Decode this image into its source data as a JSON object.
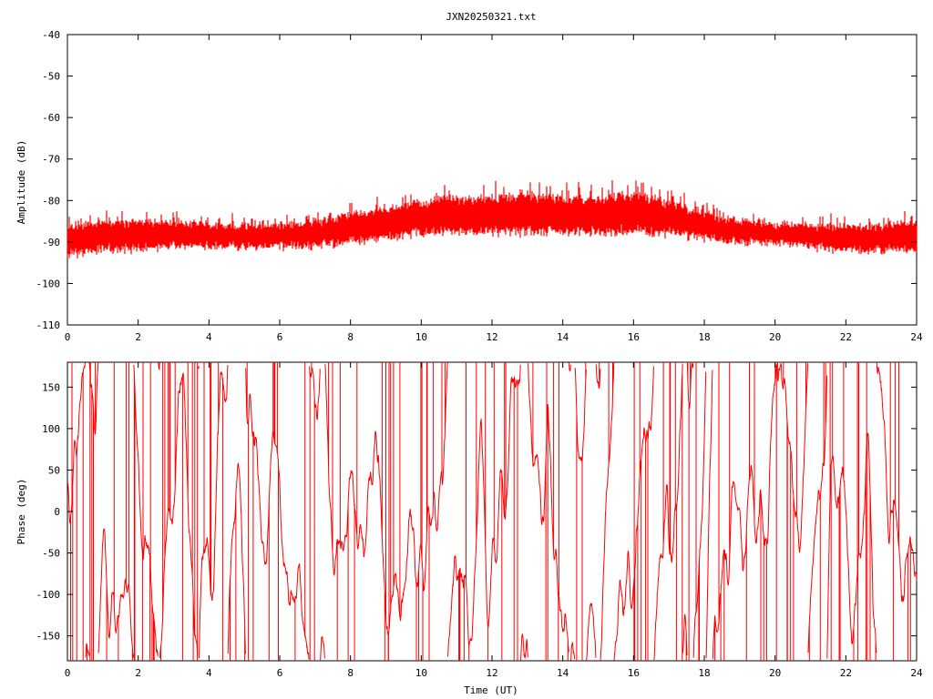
{
  "title": "JXN20250321.txt",
  "xlabel": "Time (UT)",
  "colors": {
    "series": "#ff0000",
    "axes": "#000000",
    "background": "#ffffff"
  },
  "chart_data": [
    {
      "type": "line",
      "panel": "amplitude",
      "title": "JXN20250321.txt",
      "xlabel": "",
      "ylabel": "Amplitude (dB)",
      "xlim": [
        0,
        24
      ],
      "ylim": [
        -110,
        -40
      ],
      "xticks": [
        "0",
        "2",
        "4",
        "6",
        "8",
        "10",
        "12",
        "14",
        "16",
        "18",
        "20",
        "22",
        "24"
      ],
      "yticks": [
        "-40",
        "-50",
        "-60",
        "-70",
        "-80",
        "-90",
        "-100",
        "-110"
      ],
      "grid": false,
      "envelope": {
        "x": [
          0,
          1,
          2,
          3,
          4,
          5,
          6,
          7,
          8,
          9,
          10,
          11,
          12,
          13,
          14,
          15,
          16,
          17,
          18,
          19,
          20,
          21,
          22,
          23,
          24
        ],
        "y_low": [
          -94,
          -93,
          -93,
          -92,
          -92,
          -92,
          -92,
          -92,
          -91,
          -90,
          -89,
          -89,
          -89,
          -89,
          -89,
          -89,
          -89,
          -89,
          -90,
          -91,
          -91,
          -92,
          -93,
          -93,
          -93
        ],
        "y_high": [
          -85,
          -84,
          -84,
          -84,
          -85,
          -85,
          -85,
          -84,
          -82,
          -81,
          -79,
          -78,
          -78,
          -77,
          -78,
          -78,
          -77,
          -79,
          -82,
          -84,
          -85,
          -85,
          -85,
          -85,
          -84
        ]
      }
    },
    {
      "type": "line",
      "panel": "phase",
      "xlabel": "Time (UT)",
      "ylabel": "Phase (deg)",
      "xlim": [
        0,
        24
      ],
      "ylim": [
        -180,
        180
      ],
      "xticks": [
        "0",
        "2",
        "4",
        "6",
        "8",
        "10",
        "12",
        "14",
        "16",
        "18",
        "20",
        "22",
        "24"
      ],
      "yticks": [
        "150",
        "100",
        "50",
        "0",
        "-50",
        "-100",
        "-150"
      ],
      "ytick_values": [
        150,
        100,
        50,
        0,
        -50,
        -100,
        -150
      ],
      "grid": false,
      "wrapped": true
    }
  ]
}
